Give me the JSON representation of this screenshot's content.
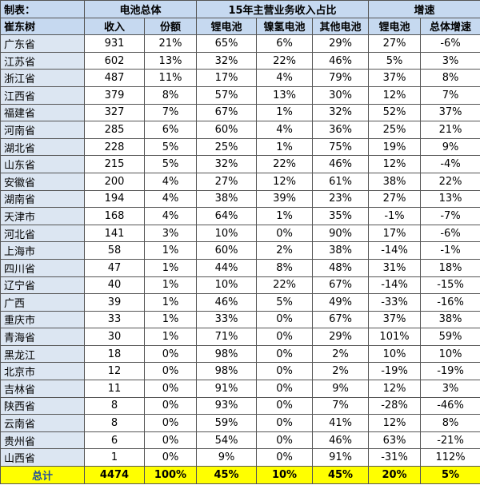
{
  "table": {
    "header1": [
      "制表：",
      "电池总体",
      "15年主营业务收入占比",
      "增速"
    ],
    "header2": [
      "崔东树",
      "收入",
      "份额",
      "锂电池",
      "镍氢电池",
      "其他电池",
      "锂电池",
      "总体增速"
    ],
    "rows": [
      [
        "广东省",
        "931",
        "21%",
        "65%",
        "6%",
        "29%",
        "27%",
        "-6%"
      ],
      [
        "江苏省",
        "602",
        "13%",
        "32%",
        "22%",
        "46%",
        "5%",
        "3%"
      ],
      [
        "浙江省",
        "487",
        "11%",
        "17%",
        "4%",
        "79%",
        "37%",
        "8%"
      ],
      [
        "江西省",
        "379",
        "8%",
        "57%",
        "13%",
        "30%",
        "12%",
        "7%"
      ],
      [
        "福建省",
        "327",
        "7%",
        "67%",
        "1%",
        "32%",
        "52%",
        "37%"
      ],
      [
        "河南省",
        "285",
        "6%",
        "60%",
        "4%",
        "36%",
        "25%",
        "21%"
      ],
      [
        "湖北省",
        "228",
        "5%",
        "25%",
        "1%",
        "75%",
        "19%",
        "9%"
      ],
      [
        "山东省",
        "215",
        "5%",
        "32%",
        "22%",
        "46%",
        "12%",
        "-4%"
      ],
      [
        "安徽省",
        "200",
        "4%",
        "27%",
        "12%",
        "61%",
        "38%",
        "22%"
      ],
      [
        "湖南省",
        "194",
        "4%",
        "38%",
        "39%",
        "23%",
        "27%",
        "13%"
      ],
      [
        "天津市",
        "168",
        "4%",
        "64%",
        "1%",
        "35%",
        "-1%",
        "-7%"
      ],
      [
        "河北省",
        "141",
        "3%",
        "10%",
        "0%",
        "90%",
        "17%",
        "-6%"
      ],
      [
        "上海市",
        "58",
        "1%",
        "60%",
        "2%",
        "38%",
        "-14%",
        "-1%"
      ],
      [
        "四川省",
        "47",
        "1%",
        "44%",
        "8%",
        "48%",
        "31%",
        "18%"
      ],
      [
        "辽宁省",
        "40",
        "1%",
        "10%",
        "22%",
        "67%",
        "-14%",
        "-15%"
      ],
      [
        "广西",
        "39",
        "1%",
        "46%",
        "5%",
        "49%",
        "-33%",
        "-16%"
      ],
      [
        "重庆市",
        "33",
        "1%",
        "33%",
        "0%",
        "67%",
        "37%",
        "38%"
      ],
      [
        "青海省",
        "30",
        "1%",
        "71%",
        "0%",
        "29%",
        "101%",
        "59%"
      ],
      [
        "黑龙江",
        "18",
        "0%",
        "98%",
        "0%",
        "2%",
        "10%",
        "10%"
      ],
      [
        "北京市",
        "12",
        "0%",
        "98%",
        "0%",
        "2%",
        "-19%",
        "-19%"
      ],
      [
        "吉林省",
        "11",
        "0%",
        "91%",
        "0%",
        "9%",
        "12%",
        "3%"
      ],
      [
        "陕西省",
        "8",
        "0%",
        "93%",
        "0%",
        "7%",
        "-28%",
        "-46%"
      ],
      [
        "云南省",
        "8",
        "0%",
        "59%",
        "0%",
        "41%",
        "12%",
        "8%"
      ],
      [
        "贵州省",
        "6",
        "0%",
        "54%",
        "0%",
        "46%",
        "63%",
        "-21%"
      ],
      [
        "山西省",
        "1",
        "0%",
        "9%",
        "0%",
        "91%",
        "-31%",
        "112%"
      ]
    ],
    "total": [
      "总计",
      "4474",
      "100%",
      "45%",
      "10%",
      "45%",
      "20%",
      "5%"
    ]
  }
}
